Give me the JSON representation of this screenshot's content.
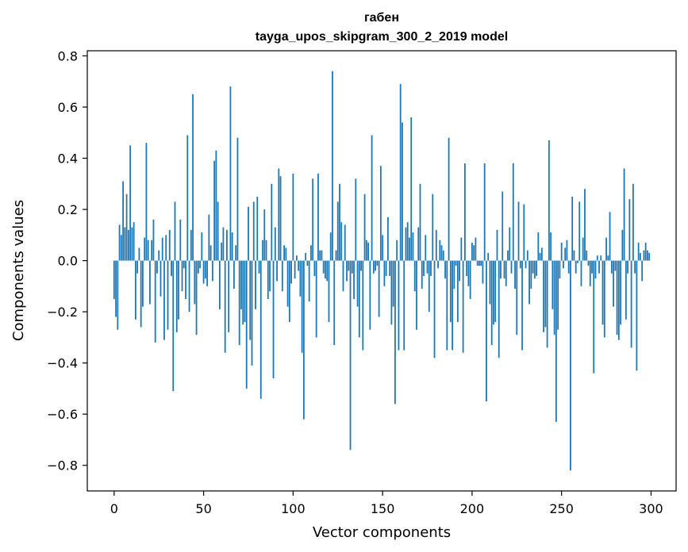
{
  "chart_data": {
    "type": "bar",
    "title": "габен",
    "subtitle": "tayga_upos_skipgram_300_2_2019 model",
    "xlabel": "Vector components",
    "ylabel": "Components values",
    "xlim": [
      -15,
      314
    ],
    "ylim": [
      -0.9,
      0.82
    ],
    "x_ticks": [
      0,
      50,
      100,
      150,
      200,
      250,
      300
    ],
    "y_ticks": [
      -0.8,
      -0.6,
      -0.4,
      -0.2,
      0.0,
      0.2,
      0.4,
      0.6,
      0.8
    ],
    "y_tick_labels": [
      "−0.8",
      "−0.6",
      "−0.4",
      "−0.2",
      "0.0",
      "0.2",
      "0.4",
      "0.6",
      "0.8"
    ],
    "bar_color": "#1f77b4",
    "grid": false,
    "values": [
      -0.15,
      -0.22,
      -0.27,
      0.14,
      0.1,
      0.31,
      0.13,
      0.26,
      0.12,
      0.45,
      0.13,
      0.15,
      -0.23,
      -0.05,
      0.05,
      -0.26,
      -0.18,
      0.09,
      0.46,
      0.08,
      -0.17,
      0.08,
      0.16,
      -0.32,
      -0.05,
      0.04,
      -0.14,
      0.09,
      -0.31,
      0.1,
      -0.27,
      0.12,
      -0.06,
      -0.51,
      0.23,
      -0.28,
      -0.23,
      0.16,
      -0.12,
      -0.03,
      -0.15,
      0.49,
      -0.2,
      0.12,
      0.65,
      -0.17,
      -0.29,
      -0.05,
      -0.03,
      0.11,
      -0.09,
      -0.07,
      -0.1,
      0.18,
      0.06,
      -0.08,
      0.39,
      0.43,
      0.23,
      -0.19,
      0.07,
      0.13,
      -0.36,
      0.12,
      -0.28,
      0.68,
      0.11,
      -0.11,
      0.06,
      0.48,
      -0.33,
      -0.19,
      -0.25,
      -0.24,
      -0.5,
      0.21,
      -0.31,
      -0.41,
      0.23,
      -0.19,
      0.25,
      -0.05,
      -0.54,
      0.08,
      0.2,
      0.08,
      -0.15,
      -0.12,
      0.3,
      -0.46,
      0.13,
      -0.08,
      0.36,
      0.33,
      -0.12,
      0.06,
      0.05,
      -0.18,
      -0.24,
      -0.09,
      0.34,
      -0.07,
      0.02,
      -0.04,
      -0.14,
      -0.36,
      -0.62,
      0.03,
      -0.02,
      -0.16,
      0.06,
      0.32,
      -0.06,
      -0.3,
      0.34,
      0.04,
      0.04,
      -0.05,
      -0.07,
      -0.08,
      -0.24,
      0.11,
      0.74,
      -0.33,
      0.04,
      0.23,
      0.3,
      0.15,
      -0.12,
      0.14,
      -0.08,
      -0.04,
      -0.74,
      -0.05,
      -0.15,
      0.32,
      -0.18,
      -0.3,
      -0.04,
      -0.35,
      0.26,
      0.08,
      0.07,
      -0.27,
      0.49,
      -0.05,
      -0.04,
      -0.02,
      -0.22,
      0.37,
      0.1,
      -0.1,
      -0.06,
      0.17,
      -0.06,
      -0.25,
      -0.18,
      -0.56,
      0.08,
      -0.35,
      0.69,
      0.54,
      -0.35,
      0.13,
      0.15,
      0.09,
      0.56,
      0.11,
      -0.12,
      -0.27,
      0.13,
      0.3,
      -0.11,
      -0.06,
      0.1,
      -0.05,
      -0.2,
      -0.06,
      0.26,
      -0.38,
      0.12,
      -0.03,
      0.08,
      0.06,
      0.04,
      -0.07,
      -0.35,
      0.48,
      -0.24,
      -0.35,
      -0.11,
      -0.02,
      -0.24,
      -0.08,
      0.09,
      -0.36,
      0.38,
      -0.06,
      -0.1,
      -0.15,
      0.07,
      0.06,
      0.09,
      -0.02,
      -0.02,
      -0.02,
      -0.09,
      0.38,
      -0.55,
      0.03,
      -0.17,
      -0.33,
      -0.25,
      -0.24,
      0.12,
      -0.38,
      -0.07,
      0.27,
      -0.07,
      -0.1,
      0.04,
      0.13,
      -0.05,
      0.38,
      -0.11,
      -0.29,
      0.23,
      -0.03,
      -0.35,
      0.22,
      -0.03,
      0.04,
      -0.17,
      -0.11,
      -0.05,
      -0.07,
      -0.06,
      0.11,
      0.03,
      0.05,
      -0.28,
      -0.26,
      -0.34,
      0.47,
      0.11,
      -0.19,
      -0.29,
      -0.63,
      -0.27,
      -0.07,
      0.07,
      -0.03,
      0.05,
      0.08,
      -0.05,
      -0.82,
      0.25,
      0.04,
      -0.05,
      -0.01,
      0.23,
      -0.1,
      0.09,
      0.28,
      0.04,
      -0.02,
      -0.1,
      -0.05,
      -0.44,
      -0.07,
      0.02,
      -0.05,
      0.02,
      -0.25,
      -0.3,
      0.09,
      0.02,
      0.19,
      -0.05,
      -0.18,
      -0.04,
      -0.29,
      -0.31,
      -0.25,
      0.12,
      0.36,
      -0.23,
      -0.05,
      0.24,
      -0.34,
      0.3,
      -0.05,
      -0.43,
      0.07,
      0.03,
      -0.08,
      0.04,
      0.07,
      0.04,
      0.03
    ]
  }
}
